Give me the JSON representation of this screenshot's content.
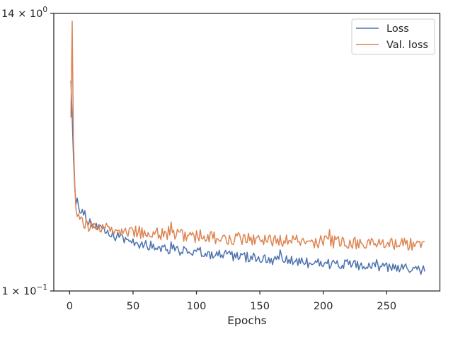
{
  "chart_data": {
    "type": "line",
    "title": "",
    "xlabel": "Epochs",
    "ylabel": "",
    "yscale": "log",
    "xlim": [
      -12.5,
      292
    ],
    "ylim": [
      0.1,
      1.4
    ],
    "x_ticks": [
      0,
      50,
      100,
      150,
      200,
      250
    ],
    "x_tick_labels": [
      "0",
      "50",
      "100",
      "150",
      "200",
      "250"
    ],
    "y_tick_labels": [
      {
        "value": 1.4,
        "mantissa": "14",
        "exponent": "0"
      },
      {
        "value": 0.1,
        "mantissa": "1",
        "exponent": "−1"
      }
    ],
    "grid": false,
    "legend": {
      "position": "top-right",
      "entries": [
        "Loss",
        "Val. loss"
      ]
    },
    "series": [
      {
        "name": "Loss",
        "color": "#4c72b0",
        "x": [
          1,
          2,
          3,
          4,
          5,
          6,
          8,
          10,
          12,
          15,
          20,
          25,
          30,
          40,
          50,
          60,
          80,
          100,
          120,
          140,
          160,
          180,
          200,
          220,
          240,
          260,
          280
        ],
        "y": [
          0.74,
          0.52,
          0.36,
          0.27,
          0.24,
          0.23,
          0.22,
          0.21,
          0.205,
          0.195,
          0.185,
          0.178,
          0.172,
          0.165,
          0.16,
          0.155,
          0.149,
          0.145,
          0.141,
          0.138,
          0.135,
          0.132,
          0.13,
          0.128,
          0.126,
          0.124,
          0.122
        ],
        "noise": 0.05
      },
      {
        "name": "Val. loss",
        "color": "#dd8452",
        "x": [
          1,
          2,
          3,
          4,
          5,
          6,
          8,
          10,
          12,
          15,
          20,
          25,
          30,
          40,
          50,
          60,
          80,
          100,
          120,
          140,
          160,
          180,
          200,
          220,
          240,
          260,
          280
        ],
        "y": [
          0.52,
          1.3,
          0.42,
          0.28,
          0.23,
          0.2,
          0.195,
          0.19,
          0.188,
          0.186,
          0.184,
          0.182,
          0.18,
          0.178,
          0.176,
          0.174,
          0.171,
          0.168,
          0.166,
          0.164,
          0.162,
          0.161,
          0.16,
          0.159,
          0.158,
          0.157,
          0.156
        ],
        "noise": 0.06
      }
    ]
  }
}
